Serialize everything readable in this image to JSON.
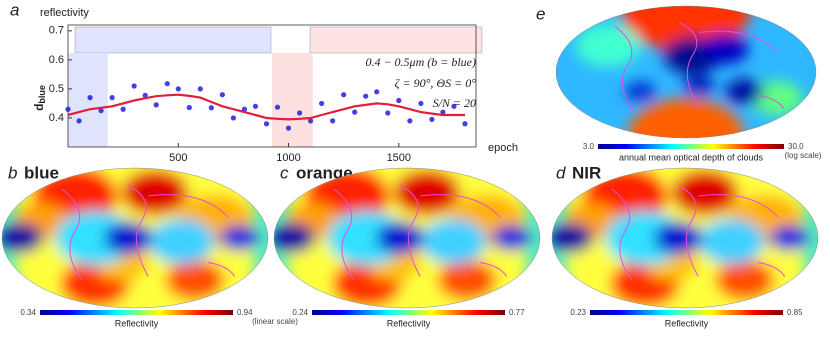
{
  "chart_data": {
    "type": "line",
    "panel_label": "a",
    "y_title": "reflectivity",
    "y_label": "d",
    "y_label_sub": "blue",
    "x_label": "epoch",
    "annotations": [
      "0.4 − 0.5μm (b = blue)",
      "ζ = 90°, ΘS = 0°",
      "S/N = 20"
    ],
    "x": [
      0,
      50,
      100,
      150,
      200,
      250,
      300,
      350,
      400,
      450,
      500,
      550,
      600,
      650,
      700,
      750,
      800,
      850,
      900,
      950,
      1000,
      1050,
      1100,
      1150,
      1200,
      1250,
      1300,
      1350,
      1400,
      1450,
      1500,
      1550,
      1600,
      1650,
      1700,
      1750,
      1800
    ],
    "series": [
      {
        "color": "#1f1fe0",
        "markers": true,
        "values": [
          0.43,
          0.39,
          0.47,
          0.425,
          0.47,
          0.43,
          0.51,
          0.478,
          0.445,
          0.518,
          0.5,
          0.436,
          0.5,
          0.435,
          0.48,
          0.4,
          0.43,
          0.44,
          0.38,
          0.437,
          0.365,
          0.417,
          0.39,
          0.45,
          0.39,
          0.48,
          0.42,
          0.475,
          0.49,
          0.417,
          0.46,
          0.39,
          0.45,
          0.395,
          0.42,
          0.44,
          0.38
        ]
      },
      {
        "color": "#e0203a",
        "markers": false,
        "values": [
          0.41,
          0.42,
          0.43,
          0.435,
          0.44,
          0.45,
          0.46,
          0.468,
          0.475,
          0.478,
          0.48,
          0.476,
          0.47,
          0.455,
          0.44,
          0.43,
          0.42,
          0.41,
          0.4,
          0.397,
          0.395,
          0.397,
          0.4,
          0.41,
          0.42,
          0.43,
          0.44,
          0.445,
          0.45,
          0.447,
          0.44,
          0.43,
          0.42,
          0.415,
          0.41,
          0.41,
          0.41
        ]
      }
    ],
    "highlight_ranges": [
      [
        0,
        180
      ],
      [
        925,
        1110
      ]
    ],
    "xlim": [
      0,
      1850
    ],
    "ylim": [
      0.3,
      0.72
    ],
    "xticks": [
      500,
      1000,
      1500
    ],
    "yticks": [
      0.4,
      0.5,
      0.6,
      0.7
    ]
  },
  "maps": [
    {
      "label": "b",
      "title": "blue",
      "title_color": "#1a3fd8",
      "colorbar": {
        "min": "0.34",
        "max": "0.94",
        "label": "Reflectivity",
        "note": "(linear scale)"
      }
    },
    {
      "label": "c",
      "title": "orange",
      "title_color": "#f5a623",
      "colorbar": {
        "min": "0.24",
        "max": "0.77",
        "label": "Reflectivity"
      }
    },
    {
      "label": "d",
      "title": "NIR",
      "title_color": "#e8202a",
      "colorbar": {
        "min": "0.23",
        "max": "0.85",
        "label": "Reflectivity"
      }
    }
  ],
  "cloud_map": {
    "label": "e",
    "colorbar": {
      "min": "3.0",
      "max": "30.0",
      "label": "annual mean optical depth of clouds",
      "note": "(log scale)"
    }
  }
}
